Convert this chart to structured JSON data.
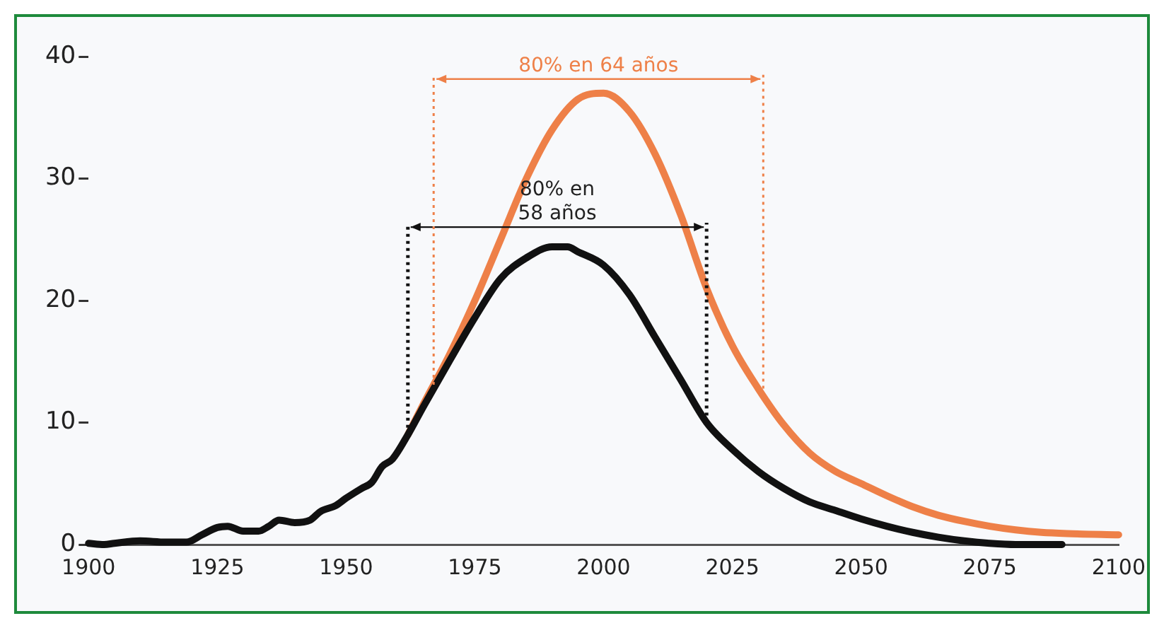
{
  "chart_data": {
    "type": "line",
    "xlim": [
      1900,
      2100
    ],
    "xticks": [
      1900,
      1925,
      1950,
      1975,
      2000,
      2025,
      2050,
      2075,
      2100
    ],
    "ylim": [
      0,
      40
    ],
    "yticks": [
      0,
      10,
      20,
      30,
      40
    ],
    "legend": false,
    "marker": "none",
    "line_style": "solid",
    "series": [
      {
        "color": "#111111",
        "x": [
          1900,
          1903,
          1905,
          1910,
          1915,
          1919,
          1922,
          1925,
          1927,
          1930,
          1933,
          1935,
          1937,
          1940,
          1943,
          1945,
          1948,
          1950,
          1953,
          1955,
          1957,
          1959,
          1962,
          1965,
          1970,
          1975,
          1980,
          1985,
          1990,
          1993,
          1995,
          2000,
          2005,
          2010,
          2015,
          2020,
          2025,
          2030,
          2035,
          2040,
          2045,
          2050,
          2055,
          2060,
          2065,
          2070,
          2075,
          2080,
          2089
        ],
        "values": [
          0.1,
          0,
          0.1,
          0.3,
          0.2,
          0.2,
          0.8,
          1.4,
          1.5,
          1.1,
          1.1,
          1.5,
          2.0,
          1.8,
          2.0,
          2.7,
          3.2,
          3.8,
          4.6,
          5.1,
          6.4,
          7.0,
          9.0,
          11.3,
          15.0,
          18.6,
          21.8,
          23.5,
          24.4,
          24.4,
          24.0,
          22.9,
          20.5,
          17.0,
          13.5,
          10.0,
          7.8,
          6.0,
          4.6,
          3.5,
          2.8,
          2.1,
          1.5,
          1.0,
          0.6,
          0.3,
          0.1,
          0,
          0
        ]
      },
      {
        "color": "#ee8048",
        "x": [
          1962,
          1965,
          1970,
          1975,
          1980,
          1985,
          1990,
          1995,
          2000,
          2005,
          2010,
          2015,
          2020,
          2025,
          2030,
          2035,
          2040,
          2045,
          2050,
          2055,
          2060,
          2065,
          2070,
          2075,
          2080,
          2085,
          2090,
          2100
        ],
        "values": [
          9.0,
          11.5,
          15.5,
          20.0,
          25.0,
          30.0,
          34.0,
          36.5,
          37.0,
          35.5,
          32.0,
          27.0,
          21.0,
          16.3,
          12.8,
          9.8,
          7.5,
          6.0,
          5.0,
          4.0,
          3.1,
          2.4,
          1.9,
          1.5,
          1.2,
          1.0,
          0.9,
          0.8
        ]
      }
    ],
    "ref_lines": [
      {
        "axis": "x",
        "value": 1962,
        "color": "#111111",
        "line_style": "dotted"
      },
      {
        "axis": "x",
        "value": 2020,
        "color": "#111111",
        "line_style": "dotted"
      },
      {
        "axis": "x",
        "value": 1967,
        "color": "#ee8048",
        "line_style": "dotted"
      },
      {
        "axis": "x",
        "value": 2031,
        "color": "#ee8048",
        "line_style": "dotted"
      }
    ],
    "annotations": [
      "80% en\n58 años",
      "80% en 64 años"
    ]
  }
}
